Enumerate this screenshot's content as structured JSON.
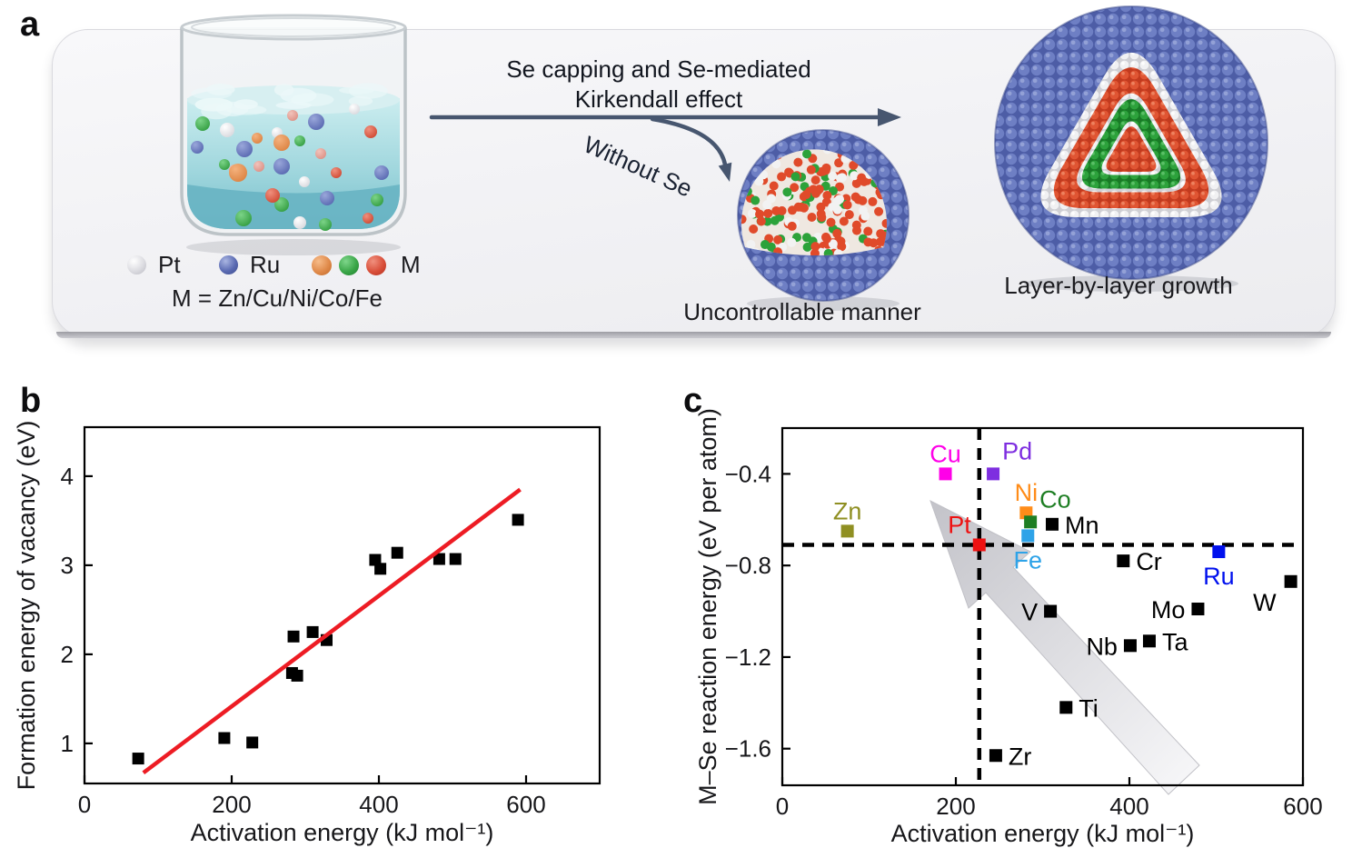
{
  "figure": {
    "panel_a": {
      "label": "a",
      "legend": {
        "items": [
          {
            "icon": "white-sphere",
            "label": "Pt"
          },
          {
            "icon": "blue-sphere",
            "label": "Ru"
          },
          {
            "icon": "orange-green-red-spheres",
            "label": "M"
          }
        ],
        "formula": "M = Zn/Cu/Ni/Co/Fe"
      },
      "process_arrow_label_line1": "Se capping and Se-mediated",
      "process_arrow_label_line2": "Kirkendall effect",
      "branch_arrow_label": "Without Se",
      "caption_without_se": "Uncontrollable manner",
      "caption_with_se": "Layer-by-layer growth",
      "colors": {
        "process_arrow": "#47566f",
        "particle_shell": "#5a6ab2"
      }
    },
    "panel_b": {
      "label": "b"
    },
    "panel_c": {
      "label": "c"
    }
  },
  "chart_data": [
    {
      "panel": "b",
      "type": "scatter",
      "xlabel": "Activation energy (kJ mol⁻¹)",
      "ylabel": "Formation energy of vacancy (eV)",
      "xticks": [
        0,
        200,
        400,
        600
      ],
      "yticks": [
        1,
        2,
        3,
        4
      ],
      "xlim": [
        0,
        700
      ],
      "ylim": [
        0.55,
        4.55
      ],
      "grid": false,
      "legend": "none",
      "marker": {
        "shape": "square",
        "color": "#000000",
        "size": 13
      },
      "points": [
        [
          73,
          0.83
        ],
        [
          190,
          1.06
        ],
        [
          228,
          1.01
        ],
        [
          282,
          1.79
        ],
        [
          289,
          1.76
        ],
        [
          284,
          2.2
        ],
        [
          310,
          2.25
        ],
        [
          329,
          2.16
        ],
        [
          395,
          3.06
        ],
        [
          402,
          2.96
        ],
        [
          425,
          3.14
        ],
        [
          482,
          3.07
        ],
        [
          504,
          3.07
        ],
        [
          589,
          3.51
        ]
      ],
      "fit_line": {
        "x1": 80,
        "y1": 0.67,
        "x2": 592,
        "y2": 3.85,
        "color": "#ed1c24"
      }
    },
    {
      "panel": "c",
      "type": "scatter",
      "xlabel": "Activation energy (kJ mol⁻¹)",
      "ylabel": "M–Se reaction energy (eV per atom)",
      "xticks": [
        0,
        200,
        400,
        600
      ],
      "yticks": [
        -0.4,
        -0.8,
        -1.2,
        -1.6
      ],
      "xlim": [
        0,
        600
      ],
      "ylim": [
        -1.76,
        -0.2
      ],
      "grid": false,
      "legend": "none",
      "dashed_crosshair": {
        "x": 227,
        "y": -0.71,
        "color": "#000000"
      },
      "trend_arrow": {
        "description": "broad gray arrow pointing to upper left",
        "from_xy": [
          470,
          -1.72
        ],
        "to_xy": [
          170,
          -0.52
        ]
      },
      "points": [
        {
          "label": "Zn",
          "x": 75,
          "y": -0.65,
          "color": "#8f8f22",
          "label_pos": "above"
        },
        {
          "label": "Cu",
          "x": 188,
          "y": -0.4,
          "color": "#ff00e8",
          "label_pos": "above"
        },
        {
          "label": "Pd",
          "x": 243,
          "y": -0.4,
          "color": "#7e2ee0",
          "label_pos": "above-right"
        },
        {
          "label": "Pt",
          "x": 227,
          "y": -0.71,
          "color": "#ee1111",
          "label_pos": "above-left"
        },
        {
          "label": "Ni",
          "x": 281,
          "y": -0.57,
          "color": "#ff8c19",
          "label_pos": "above"
        },
        {
          "label": "Co",
          "x": 286,
          "y": -0.61,
          "color": "#1e7e23",
          "label_pos": "above-right"
        },
        {
          "label": "Fe",
          "x": 283,
          "y": -0.67,
          "color": "#2ea3e8",
          "label_pos": "below"
        },
        {
          "label": "Mn",
          "x": 311,
          "y": -0.62,
          "color": "#000000",
          "label_pos": "right"
        },
        {
          "label": "Cr",
          "x": 393,
          "y": -0.78,
          "color": "#000000",
          "label_pos": "right"
        },
        {
          "label": "Ru",
          "x": 503,
          "y": -0.74,
          "color": "#0010ee",
          "label_pos": "below"
        },
        {
          "label": "W",
          "x": 586,
          "y": -0.87,
          "color": "#000000",
          "label_pos": "below-left"
        },
        {
          "label": "Mo",
          "x": 479,
          "y": -0.99,
          "color": "#000000",
          "label_pos": "left"
        },
        {
          "label": "V",
          "x": 309,
          "y": -1.0,
          "color": "#000000",
          "label_pos": "left"
        },
        {
          "label": "Nb",
          "x": 401,
          "y": -1.15,
          "color": "#000000",
          "label_pos": "left"
        },
        {
          "label": "Ta",
          "x": 423,
          "y": -1.13,
          "color": "#000000",
          "label_pos": "right"
        },
        {
          "label": "Ti",
          "x": 327,
          "y": -1.42,
          "color": "#000000",
          "label_pos": "right"
        },
        {
          "label": "Zr",
          "x": 246,
          "y": -1.63,
          "color": "#000000",
          "label_pos": "right"
        }
      ]
    }
  ]
}
